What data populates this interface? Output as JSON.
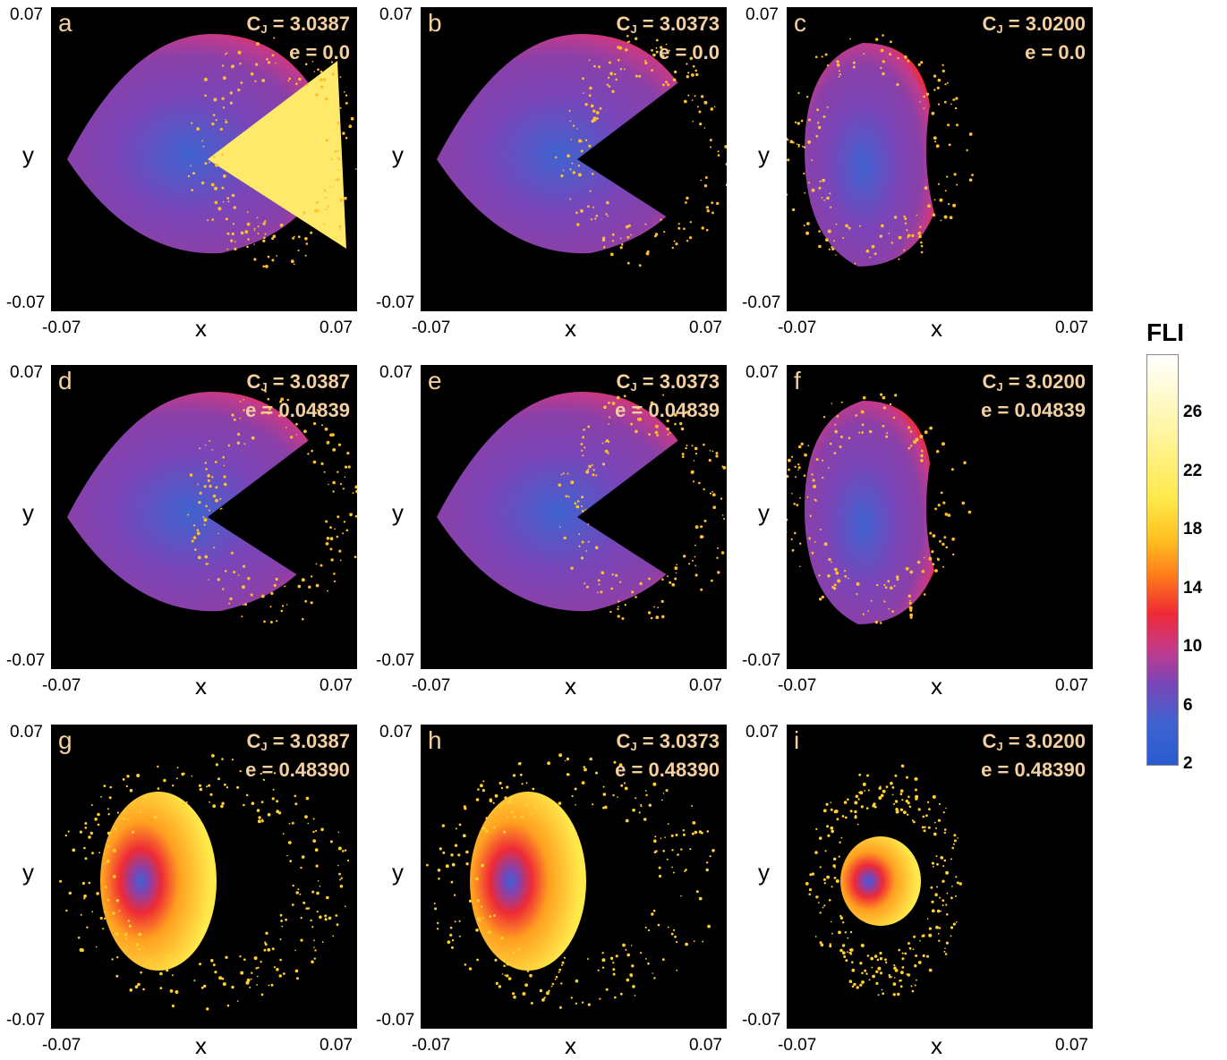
{
  "chart_data": [
    {
      "type": "heatmap",
      "label": "a",
      "cj_prefix": "C",
      "cj_sub": "J",
      "cj_value": "= 3.0387",
      "e_text": "e = 0.0",
      "xlabel": "x",
      "ylabel": "y",
      "xlim": [
        -0.07,
        0.07
      ],
      "ylim": [
        -0.07,
        0.07
      ],
      "x_ticks": [
        "-0.07",
        "0.07"
      ],
      "y_ticks": [
        "0.07",
        "-0.07"
      ]
    },
    {
      "type": "heatmap",
      "label": "b",
      "cj_prefix": "C",
      "cj_sub": "J",
      "cj_value": "= 3.0373",
      "e_text": "e = 0.0",
      "xlabel": "x",
      "ylabel": "y",
      "xlim": [
        -0.07,
        0.07
      ],
      "ylim": [
        -0.07,
        0.07
      ],
      "x_ticks": [
        "-0.07",
        "0.07"
      ],
      "y_ticks": [
        "0.07",
        "-0.07"
      ]
    },
    {
      "type": "heatmap",
      "label": "c",
      "cj_prefix": "C",
      "cj_sub": "J",
      "cj_value": "= 3.0200",
      "e_text": "e = 0.0",
      "xlabel": "x",
      "ylabel": "y",
      "xlim": [
        -0.07,
        0.07
      ],
      "ylim": [
        -0.07,
        0.07
      ],
      "x_ticks": [
        "-0.07",
        "0.07"
      ],
      "y_ticks": [
        "0.07",
        "-0.07"
      ]
    },
    {
      "type": "heatmap",
      "label": "d",
      "cj_prefix": "C",
      "cj_sub": "J",
      "cj_value": "= 3.0387",
      "e_text": "e = 0.04839",
      "xlabel": "x",
      "ylabel": "y",
      "xlim": [
        -0.07,
        0.07
      ],
      "ylim": [
        -0.07,
        0.07
      ],
      "x_ticks": [
        "-0.07",
        "0.07"
      ],
      "y_ticks": [
        "0.07",
        "-0.07"
      ]
    },
    {
      "type": "heatmap",
      "label": "e",
      "cj_prefix": "C",
      "cj_sub": "J",
      "cj_value": "= 3.0373",
      "e_text": "e = 0.04839",
      "xlabel": "x",
      "ylabel": "y",
      "xlim": [
        -0.07,
        0.07
      ],
      "ylim": [
        -0.07,
        0.07
      ],
      "x_ticks": [
        "-0.07",
        "0.07"
      ],
      "y_ticks": [
        "0.07",
        "-0.07"
      ]
    },
    {
      "type": "heatmap",
      "label": "f",
      "cj_prefix": "C",
      "cj_sub": "J",
      "cj_value": "= 3.0200",
      "e_text": "e = 0.04839",
      "xlabel": "x",
      "ylabel": "y",
      "xlim": [
        -0.07,
        0.07
      ],
      "ylim": [
        -0.07,
        0.07
      ],
      "x_ticks": [
        "-0.07",
        "0.07"
      ],
      "y_ticks": [
        "0.07",
        "-0.07"
      ]
    },
    {
      "type": "heatmap",
      "label": "g",
      "cj_prefix": "C",
      "cj_sub": "J",
      "cj_value": "= 3.0387",
      "e_text": "e = 0.48390",
      "xlabel": "x",
      "ylabel": "y",
      "xlim": [
        -0.07,
        0.07
      ],
      "ylim": [
        -0.07,
        0.07
      ],
      "x_ticks": [
        "-0.07",
        "0.07"
      ],
      "y_ticks": [
        "0.07",
        "-0.07"
      ]
    },
    {
      "type": "heatmap",
      "label": "h",
      "cj_prefix": "C",
      "cj_sub": "J",
      "cj_value": "= 3.0373",
      "e_text": "e = 0.48390",
      "xlabel": "x",
      "ylabel": "y",
      "xlim": [
        -0.07,
        0.07
      ],
      "ylim": [
        -0.07,
        0.07
      ],
      "x_ticks": [
        "-0.07",
        "0.07"
      ],
      "y_ticks": [
        "0.07",
        "-0.07"
      ]
    },
    {
      "type": "heatmap",
      "label": "i",
      "cj_prefix": "C",
      "cj_sub": "J",
      "cj_value": "= 3.0200",
      "e_text": "e = 0.48390",
      "xlabel": "x",
      "ylabel": "y",
      "xlim": [
        -0.07,
        0.07
      ],
      "ylim": [
        -0.07,
        0.07
      ],
      "x_ticks": [
        "-0.07",
        "0.07"
      ],
      "y_ticks": [
        "0.07",
        "-0.07"
      ]
    }
  ],
  "colorbar": {
    "title": "FLI",
    "range": [
      2,
      30
    ],
    "ticks": [
      {
        "label": "26",
        "value": 26
      },
      {
        "label": "22",
        "value": 22
      },
      {
        "label": "18",
        "value": 18
      },
      {
        "label": "14",
        "value": 14
      },
      {
        "label": "10",
        "value": 10
      },
      {
        "label": "6",
        "value": 6
      },
      {
        "label": "2",
        "value": 2
      }
    ],
    "colors": [
      "#2a5bd0",
      "#7a45b8",
      "#ef2a36",
      "#ff7a1a",
      "#ffc020",
      "#ffe94a",
      "#ffffff"
    ]
  }
}
